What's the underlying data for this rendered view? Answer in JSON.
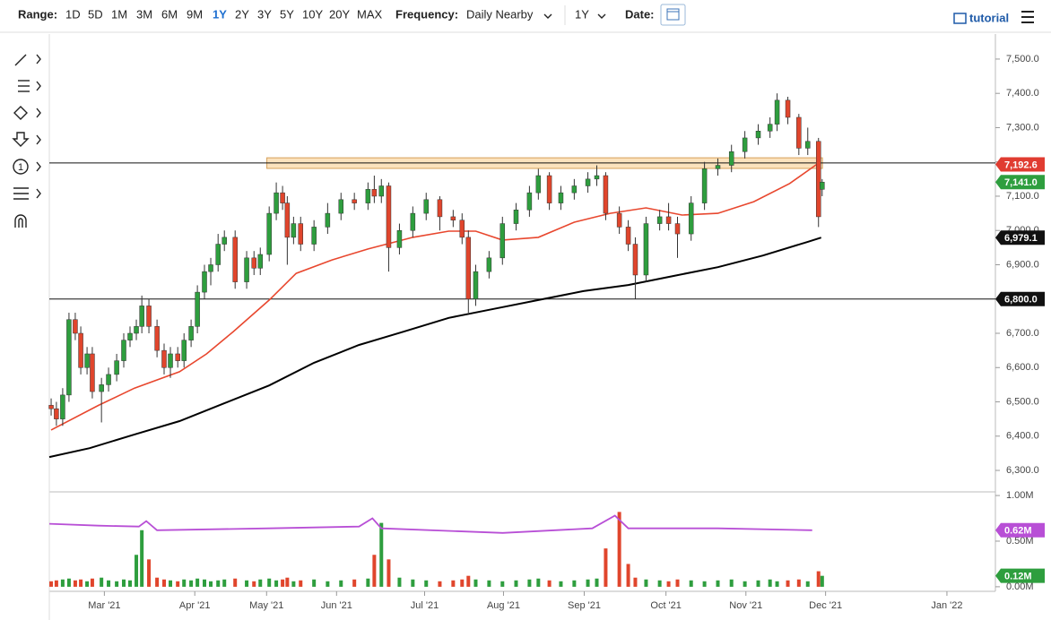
{
  "toolbar": {
    "range_label": "Range:",
    "ranges": [
      "1D",
      "5D",
      "1M",
      "3M",
      "6M",
      "9M",
      "1Y",
      "2Y",
      "3Y",
      "5Y",
      "10Y",
      "20Y",
      "MAX"
    ],
    "active_range": "1Y",
    "frequency_label": "Frequency:",
    "frequency": "Daily Nearby",
    "period": "1Y",
    "date_label": "Date:",
    "tutorial": "tutorial"
  },
  "left_tools": {
    "count_icon": "1"
  },
  "chart_data": [
    {
      "type": "candlestick",
      "up_color": "#2e9e3e",
      "down_color": "#e0452c",
      "xlim": [
        0,
        361
      ],
      "ylim": [
        6240,
        7573
      ],
      "yticks": [
        {
          "value": 6300,
          "label": "6,300.0"
        },
        {
          "value": 6400,
          "label": "6,400.0"
        },
        {
          "value": 6500,
          "label": "6,500.0"
        },
        {
          "value": 6600,
          "label": "6,600.0"
        },
        {
          "value": 6700,
          "label": "6,700.0"
        },
        {
          "value": 6800,
          "label": "6,800.0"
        },
        {
          "value": 6900,
          "label": "6,900.0"
        },
        {
          "value": 7000,
          "label": "7,000.0"
        },
        {
          "value": 7100,
          "label": "7,100.0"
        },
        {
          "value": 7200,
          "label": "7,200.0"
        },
        {
          "value": 7300,
          "label": "7,300.0"
        },
        {
          "value": 7400,
          "label": "7,400.0"
        },
        {
          "value": 7500,
          "label": "7,500.0"
        }
      ],
      "x": [
        0.7,
        2.7,
        5.1,
        7.5,
        9.9,
        12,
        14.4,
        16.4,
        19.9,
        22.6,
        25.7,
        28.4,
        30.8,
        33.2,
        35.3,
        38,
        41.1,
        43.8,
        46.2,
        49,
        51.4,
        54.1,
        56.5,
        59.2,
        61.6,
        64.4,
        66.8,
        70.9,
        75.3,
        78.1,
        80.5,
        83.9,
        86.6,
        89,
        90.8,
        93.2,
        95.9,
        101,
        106.2,
        111.3,
        116.4,
        121.6,
        124,
        126.7,
        129.5,
        133.6,
        138.7,
        143.8,
        149,
        154.1,
        157.5,
        159.9,
        162.7,
        167.8,
        172.9,
        178.1,
        183.2,
        186.6,
        190.8,
        195.2,
        200.3,
        205.5,
        208.9,
        212.3,
        217.5,
        220.9,
        223.6,
        227.7,
        232.9,
        236.3,
        239.7,
        244.9,
        250,
        255.1,
        260.3,
        265.4,
        270.5,
        275,
        277.7,
        281.8,
        286,
        289.4,
        293.5,
        294.9
      ],
      "ohlc": [
        [
          6490,
          6510,
          6460,
          6480
        ],
        [
          6480,
          6500,
          6430,
          6450
        ],
        [
          6450,
          6540,
          6430,
          6520
        ],
        [
          6520,
          6760,
          6500,
          6740
        ],
        [
          6740,
          6760,
          6680,
          6700
        ],
        [
          6700,
          6720,
          6580,
          6600
        ],
        [
          6600,
          6660,
          6580,
          6640
        ],
        [
          6640,
          6660,
          6510,
          6530
        ],
        [
          6530,
          6570,
          6440,
          6550
        ],
        [
          6550,
          6600,
          6530,
          6580
        ],
        [
          6580,
          6640,
          6560,
          6620
        ],
        [
          6620,
          6700,
          6600,
          6680
        ],
        [
          6680,
          6720,
          6660,
          6700
        ],
        [
          6700,
          6740,
          6680,
          6720
        ],
        [
          6720,
          6810,
          6700,
          6780
        ],
        [
          6780,
          6800,
          6700,
          6720
        ],
        [
          6720,
          6740,
          6630,
          6650
        ],
        [
          6650,
          6670,
          6580,
          6600
        ],
        [
          6600,
          6660,
          6570,
          6640
        ],
        [
          6640,
          6660,
          6600,
          6620
        ],
        [
          6620,
          6700,
          6600,
          6680
        ],
        [
          6680,
          6740,
          6660,
          6720
        ],
        [
          6720,
          6840,
          6700,
          6820
        ],
        [
          6820,
          6900,
          6800,
          6880
        ],
        [
          6880,
          6920,
          6840,
          6900
        ],
        [
          6900,
          6990,
          6880,
          6960
        ],
        [
          6960,
          7000,
          6940,
          6980
        ],
        [
          6980,
          7000,
          6830,
          6850
        ],
        [
          6850,
          6940,
          6830,
          6920
        ],
        [
          6920,
          6940,
          6870,
          6890
        ],
        [
          6890,
          6950,
          6870,
          6930
        ],
        [
          6930,
          7070,
          6910,
          7050
        ],
        [
          7050,
          7140,
          7030,
          7110
        ],
        [
          7110,
          7130,
          7060,
          7080
        ],
        [
          7080,
          7100,
          6900,
          6980
        ],
        [
          6980,
          7040,
          6960,
          7020
        ],
        [
          7020,
          7040,
          6940,
          6960
        ],
        [
          6960,
          7030,
          6940,
          7010
        ],
        [
          7010,
          7080,
          6990,
          7050
        ],
        [
          7050,
          7110,
          7030,
          7090
        ],
        [
          7090,
          7110,
          7060,
          7080
        ],
        [
          7080,
          7140,
          7060,
          7120
        ],
        [
          7120,
          7160,
          7080,
          7100
        ],
        [
          7100,
          7150,
          7080,
          7130
        ],
        [
          7130,
          7140,
          6880,
          6950
        ],
        [
          6950,
          7020,
          6930,
          7000
        ],
        [
          7000,
          7070,
          6980,
          7050
        ],
        [
          7050,
          7110,
          7030,
          7090
        ],
        [
          7090,
          7100,
          7000,
          7040
        ],
        [
          7040,
          7060,
          7010,
          7030
        ],
        [
          7030,
          7050,
          6960,
          6980
        ],
        [
          6980,
          7000,
          6760,
          6800
        ],
        [
          6800,
          6900,
          6780,
          6880
        ],
        [
          6880,
          6940,
          6860,
          6920
        ],
        [
          6920,
          7040,
          6900,
          7020
        ],
        [
          7020,
          7080,
          7000,
          7060
        ],
        [
          7060,
          7130,
          7040,
          7110
        ],
        [
          7110,
          7180,
          7090,
          7160
        ],
        [
          7160,
          7170,
          7060,
          7080
        ],
        [
          7080,
          7130,
          7060,
          7110
        ],
        [
          7110,
          7150,
          7090,
          7130
        ],
        [
          7130,
          7170,
          7110,
          7150
        ],
        [
          7150,
          7190,
          7130,
          7160
        ],
        [
          7160,
          7170,
          7030,
          7050
        ],
        [
          7050,
          7070,
          6990,
          7010
        ],
        [
          7010,
          7030,
          6940,
          6960
        ],
        [
          6960,
          6980,
          6800,
          6870
        ],
        [
          6870,
          7040,
          6850,
          7020
        ],
        [
          7020,
          7060,
          7000,
          7040
        ],
        [
          7040,
          7080,
          7000,
          7020
        ],
        [
          7020,
          7040,
          6920,
          6990
        ],
        [
          6990,
          7100,
          6970,
          7080
        ],
        [
          7080,
          7200,
          7060,
          7180
        ],
        [
          7180,
          7210,
          7160,
          7190
        ],
        [
          7190,
          7250,
          7170,
          7230
        ],
        [
          7230,
          7290,
          7210,
          7270
        ],
        [
          7270,
          7310,
          7250,
          7290
        ],
        [
          7290,
          7330,
          7270,
          7310
        ],
        [
          7310,
          7400,
          7290,
          7380
        ],
        [
          7380,
          7390,
          7310,
          7330
        ],
        [
          7330,
          7340,
          7220,
          7240
        ],
        [
          7240,
          7300,
          7220,
          7260
        ],
        [
          7260,
          7270,
          7010,
          7040
        ],
        [
          7120,
          7150,
          7100,
          7141
        ]
      ],
      "lines": [
        {
          "color": "#e8472e",
          "x": [
            0.7,
            18.8,
            32.5,
            49.7,
            60,
            70.2,
            83.9,
            94.2,
            107.9,
            121.6,
            138.7,
            152.4,
            162.7,
            172.9,
            186.6,
            200.3,
            214,
            227.7,
            241.4,
            255.1,
            268.8,
            282.5,
            292.8
          ],
          "values": [
            6418,
            6490,
            6540,
            6588,
            6640,
            6705,
            6797,
            6875,
            6914,
            6946,
            6980,
            6998,
            6998,
            6972,
            6980,
            7024,
            7050,
            7066,
            7045,
            7050,
            7084,
            7137,
            7192.6
          ]
        },
        {
          "color": "#000000",
          "x": [
            0,
            15.4,
            32.5,
            49.7,
            66.8,
            83.9,
            101,
            118.2,
            135.3,
            152.4,
            169.5,
            186.6,
            203.8,
            220.9,
            238,
            255.1,
            272.3,
            289.4,
            294.5
          ],
          "values": [
            6339,
            6365,
            6405,
            6444,
            6496,
            6548,
            6614,
            6666,
            6705,
            6745,
            6771,
            6797,
            6823,
            6841,
            6867,
            6893,
            6927,
            6967,
            6979.1
          ]
        }
      ],
      "zone": {
        "x": [
          83,
          295
        ],
        "y": [
          7181,
          7212
        ],
        "color": "#fbe2bd",
        "edge": "#d6a05a"
      },
      "hlines": [
        6800,
        7197
      ],
      "price_tags": [
        {
          "value": 7192.6,
          "label": "7,192.6",
          "color": "#e03c31"
        },
        {
          "value": 7141.0,
          "label": "7,141.0",
          "color": "#2e9e3e"
        },
        {
          "value": 6979.1,
          "label": "6,979.1",
          "color": "#111111"
        },
        {
          "value": 6800.0,
          "label": "6,800.0",
          "color": "#111111"
        }
      ]
    },
    {
      "type": "volume",
      "up_color": "#2e9e3e",
      "down_color": "#e0452c",
      "xlim": [
        0,
        361
      ],
      "ylim": [
        -0.05,
        1.03
      ],
      "yticks": [
        {
          "value": 0,
          "label": "0.00M"
        },
        {
          "value": 0.5,
          "label": "0.50M"
        },
        {
          "value": 1.0,
          "label": "1.00M"
        }
      ],
      "xticks": [
        {
          "value": 21,
          "label": "Mar '21"
        },
        {
          "value": 55.5,
          "label": "Apr '21"
        },
        {
          "value": 82.9,
          "label": "May '21"
        },
        {
          "value": 109.6,
          "label": "Jun '21"
        },
        {
          "value": 143.2,
          "label": "Jul '21"
        },
        {
          "value": 173.3,
          "label": "Aug '21"
        },
        {
          "value": 204.1,
          "label": "Sep '21"
        },
        {
          "value": 235.3,
          "label": "Oct '21"
        },
        {
          "value": 265.8,
          "label": "Nov '21"
        },
        {
          "value": 296.2,
          "label": "Dec '21"
        },
        {
          "value": 342.5,
          "label": "Jan '22"
        }
      ],
      "values": [
        0.06,
        0.07,
        0.08,
        0.09,
        0.07,
        0.08,
        0.06,
        0.09,
        0.1,
        0.07,
        0.06,
        0.08,
        0.07,
        0.35,
        0.62,
        0.3,
        0.1,
        0.08,
        0.07,
        0.06,
        0.08,
        0.07,
        0.09,
        0.08,
        0.06,
        0.07,
        0.08,
        0.09,
        0.07,
        0.06,
        0.08,
        0.09,
        0.07,
        0.08,
        0.1,
        0.06,
        0.07,
        0.08,
        0.06,
        0.07,
        0.08,
        0.09,
        0.35,
        0.7,
        0.3,
        0.1,
        0.08,
        0.07,
        0.06,
        0.07,
        0.08,
        0.12,
        0.08,
        0.07,
        0.06,
        0.07,
        0.08,
        0.09,
        0.07,
        0.06,
        0.07,
        0.08,
        0.09,
        0.42,
        0.82,
        0.25,
        0.1,
        0.08,
        0.07,
        0.06,
        0.08,
        0.07,
        0.06,
        0.07,
        0.08,
        0.06,
        0.07,
        0.08,
        0.06,
        0.07,
        0.08,
        0.06,
        0.17,
        0.12
      ],
      "ma": {
        "color": "#b84fd6",
        "x": [
          0,
          18.8,
          34.2,
          37,
          41.1,
          83.9,
          118.2,
          123.3,
          126.7,
          173,
          207.2,
          215.8,
          220.9,
          255.1,
          291.1
        ],
        "values": [
          0.69,
          0.67,
          0.66,
          0.72,
          0.62,
          0.64,
          0.66,
          0.75,
          0.64,
          0.59,
          0.64,
          0.78,
          0.64,
          0.64,
          0.62
        ]
      },
      "tags": [
        {
          "value": 0.62,
          "label": "0.62M",
          "color": "#b84fd6"
        },
        {
          "value": 0.12,
          "label": "0.12M",
          "color": "#2e9e3e"
        }
      ]
    }
  ]
}
